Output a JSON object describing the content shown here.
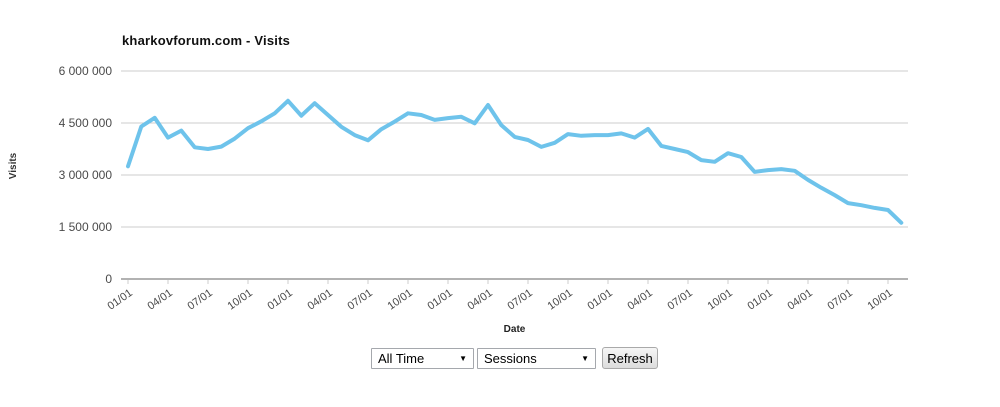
{
  "title": "kharkovforum.com - Visits",
  "y_axis": {
    "label": "Visits",
    "ticks": [
      "6 000 000",
      "4 500 000",
      "3 000 000",
      "1 500 000",
      "0"
    ]
  },
  "x_axis": {
    "label": "Date",
    "ticks": [
      "01/01",
      "04/01",
      "07/01",
      "10/01",
      "01/01",
      "04/01",
      "07/01",
      "10/01",
      "01/01",
      "04/01",
      "07/01",
      "10/01",
      "01/01",
      "04/01",
      "07/01",
      "10/01",
      "01/01",
      "04/01",
      "07/01",
      "10/01"
    ]
  },
  "controls": {
    "time_range_value": "All Time",
    "metric_value": "Sessions",
    "refresh_label": "Refresh",
    "dropdown_arrow": "▼"
  },
  "colors": {
    "line": "#6ec3eb",
    "grid": "#cccccc",
    "axis": "#666666",
    "tick_mark": "#cccccc",
    "text": "#4a4a4a",
    "background": "#ffffff"
  },
  "chart_data": {
    "type": "line",
    "title": "kharkovforum.com - Visits",
    "xlabel": "Date",
    "ylabel": "Visits",
    "ylim": [
      0,
      6000000
    ],
    "y_tick_values": [
      0,
      1500000,
      3000000,
      4500000,
      6000000
    ],
    "x_tick_labels": [
      "01/01",
      "04/01",
      "07/01",
      "10/01",
      "01/01",
      "04/01",
      "07/01",
      "10/01",
      "01/01",
      "04/01",
      "07/01",
      "10/01",
      "01/01",
      "04/01",
      "07/01",
      "10/01",
      "01/01",
      "04/01",
      "07/01",
      "10/01"
    ],
    "points_per_tick_interval": 3,
    "grid": "horizontal",
    "legend": "none",
    "series": [
      {
        "name": "Visits",
        "values": [
          3250000,
          4400000,
          4650000,
          4080000,
          4280000,
          3800000,
          3750000,
          3820000,
          4050000,
          4350000,
          4550000,
          4780000,
          5140000,
          4710000,
          5070000,
          4730000,
          4390000,
          4150000,
          4000000,
          4320000,
          4540000,
          4780000,
          4730000,
          4590000,
          4640000,
          4680000,
          4490000,
          5020000,
          4440000,
          4100000,
          4010000,
          3810000,
          3930000,
          4180000,
          4130000,
          4150000,
          4150000,
          4200000,
          4080000,
          4330000,
          3840000,
          3750000,
          3660000,
          3430000,
          3380000,
          3630000,
          3520000,
          3090000,
          3140000,
          3170000,
          3120000,
          2860000,
          2630000,
          2420000,
          2190000,
          2130000,
          2050000,
          1990000,
          1620000
        ]
      }
    ]
  }
}
